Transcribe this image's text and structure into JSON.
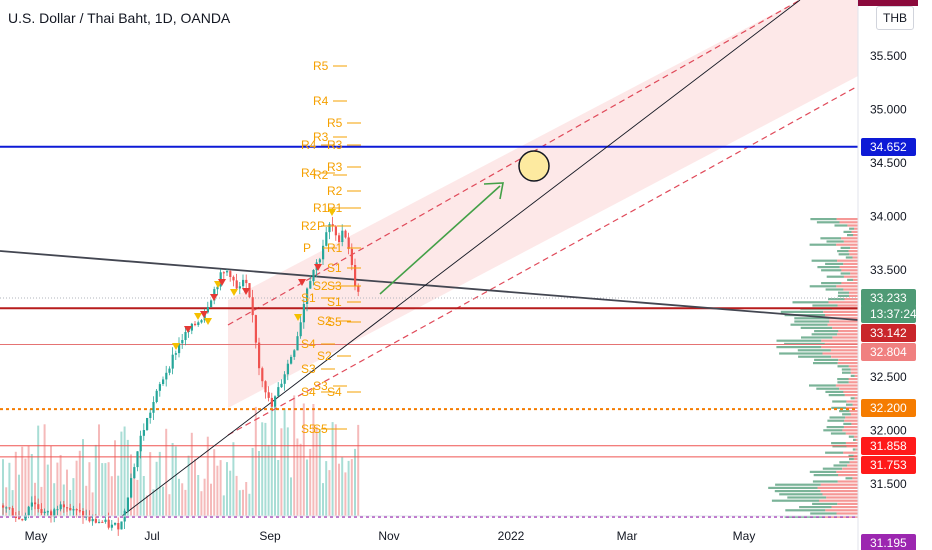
{
  "header": {
    "title": "U.S. Dollar / Thai Baht, 1D, OANDA",
    "currency": "THB"
  },
  "chart_data": {
    "type": "line",
    "title": "U.S. Dollar / Thai Baht, 1D, OANDA",
    "x_ticks": [
      "May",
      "Jul",
      "Sep",
      "Nov",
      "2022",
      "Mar",
      "May"
    ],
    "y_ticks": [
      "35.500",
      "35.000",
      "34.500",
      "34.000",
      "33.500",
      "32.500",
      "32.000",
      "31.500"
    ],
    "ylim": [
      31.1,
      36.0
    ],
    "price_tags": [
      {
        "label": "34.652",
        "value": 34.652,
        "bg": "#0d1ad6",
        "fg": "#ffffff"
      },
      {
        "label": "33.233",
        "value": 33.233,
        "bg": "#4e9a75",
        "fg": "#ffffff"
      },
      {
        "label": "13:37:24",
        "value": 33.1,
        "bg": "#4e9a75",
        "fg": "#ffffff"
      },
      {
        "label": "33.142",
        "value": 33.142,
        "bg": "#c9262b",
        "fg": "#ffffff"
      },
      {
        "label": "32.804",
        "value": 32.804,
        "bg": "#f08080",
        "fg": "#ffffff"
      },
      {
        "label": "32.200",
        "value": 32.2,
        "bg": "#f57c00",
        "fg": "#ffffff"
      },
      {
        "label": "31.858",
        "value": 31.858,
        "bg": "#ff1a1a",
        "fg": "#ffffff"
      },
      {
        "label": "31.753",
        "value": 31.753,
        "bg": "#ff1a1a",
        "fg": "#ffffff"
      },
      {
        "label": "31.195",
        "value": 31.195,
        "bg": "#9c27b0",
        "fg": "#ffffff"
      }
    ],
    "horizontal_lines": [
      {
        "value": 34.652,
        "color": "#0d1ad6",
        "width": 2,
        "dash": false
      },
      {
        "value": 33.142,
        "color": "#b71c1c",
        "width": 2,
        "dash": false
      },
      {
        "value": 32.804,
        "color": "#e57373",
        "width": 1,
        "dash": false
      },
      {
        "value": 32.2,
        "color": "#f57c00",
        "width": 2,
        "dash": true
      },
      {
        "value": 31.858,
        "color": "#ef5350",
        "width": 1,
        "dash": false
      },
      {
        "value": 31.753,
        "color": "#ef5350",
        "width": 1,
        "dash": false
      },
      {
        "value": 31.195,
        "color": "#9c27b0",
        "width": 2,
        "dash": true
      }
    ],
    "pivot_labels": [
      "R5",
      "R4",
      "R5",
      "R3",
      "R4",
      "R3",
      "R4",
      "R2",
      "R3",
      "R2",
      "R1",
      "R1",
      "R2",
      "P",
      "R1",
      "P",
      "S1",
      "S2",
      "S1",
      "S3",
      "S2",
      "S1",
      "S4",
      "S2",
      "S5",
      "S3",
      "S3",
      "S4",
      "S5",
      "S4",
      "S5"
    ],
    "colors": {
      "bull": "#26a69a",
      "bear": "#ef5350",
      "pivot": "#f5a000",
      "arrow": "#43a047",
      "channel_fill": "#fde4e4",
      "channel_line": "#e04a5a"
    }
  }
}
